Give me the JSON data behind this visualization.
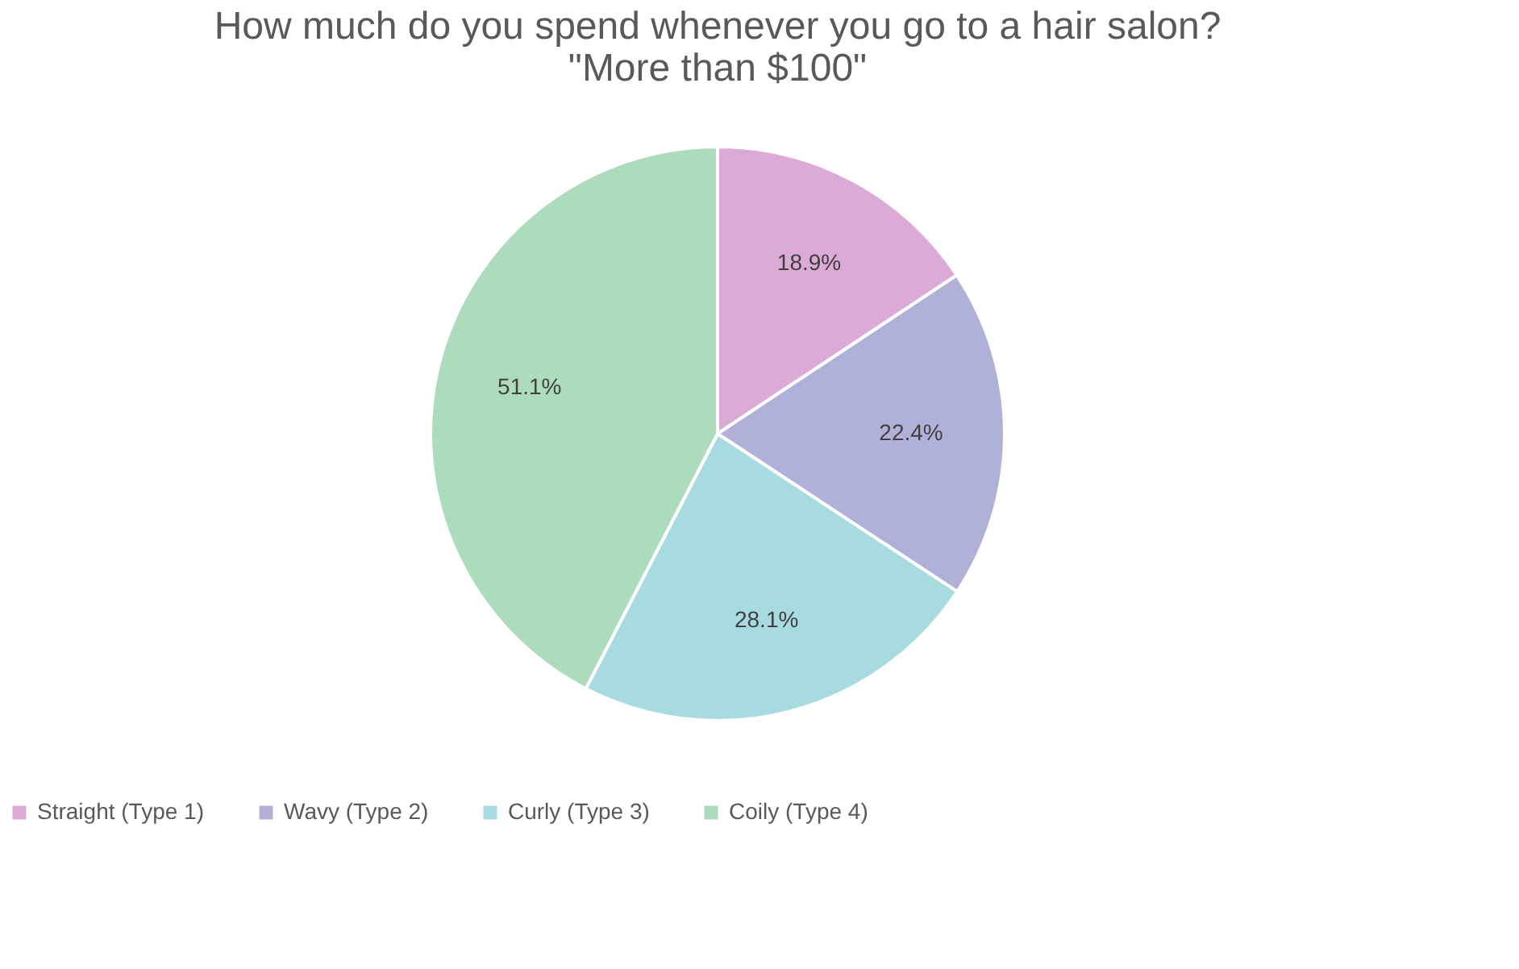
{
  "chart_data": {
    "type": "pie",
    "title": [
      "How much do you spend whenever you go to a hair salon?",
      "\"More than $100\""
    ],
    "categories": [
      "Straight (Type 1)",
      "Wavy (Type 2)",
      "Curly (Type 3)",
      "Coily (Type 4)"
    ],
    "values": [
      18.9,
      22.4,
      28.1,
      51.1
    ],
    "value_labels": [
      "18.9%",
      "22.4%",
      "28.1%",
      "51.1%"
    ],
    "colors": [
      "#dbaad6",
      "#b0b1d8",
      "#a8dbdf",
      "#addcbd"
    ],
    "legend": "bottom"
  }
}
